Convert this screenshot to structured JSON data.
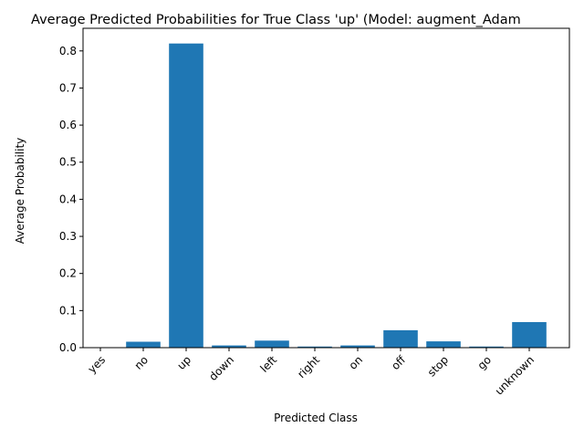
{
  "chart_data": {
    "type": "bar",
    "title": "Average Predicted Probabilities for True Class 'up' (Model: augment_Adam",
    "xlabel": "Predicted Class",
    "ylabel": "Average Probability",
    "categories": [
      "yes",
      "no",
      "up",
      "down",
      "left",
      "right",
      "on",
      "off",
      "stop",
      "go",
      "unknown"
    ],
    "values": [
      0.001,
      0.016,
      0.82,
      0.006,
      0.019,
      0.003,
      0.006,
      0.047,
      0.017,
      0.003,
      0.069
    ],
    "ylim": [
      0,
      0.861
    ],
    "yticks": [
      0.0,
      0.1,
      0.2,
      0.3,
      0.4,
      0.5,
      0.6,
      0.7,
      0.8
    ],
    "ytick_labels": [
      "0.0",
      "0.1",
      "0.2",
      "0.3",
      "0.4",
      "0.5",
      "0.6",
      "0.7",
      "0.8"
    ],
    "bar_color": "#1f77b4",
    "grid": false,
    "legend": false
  }
}
